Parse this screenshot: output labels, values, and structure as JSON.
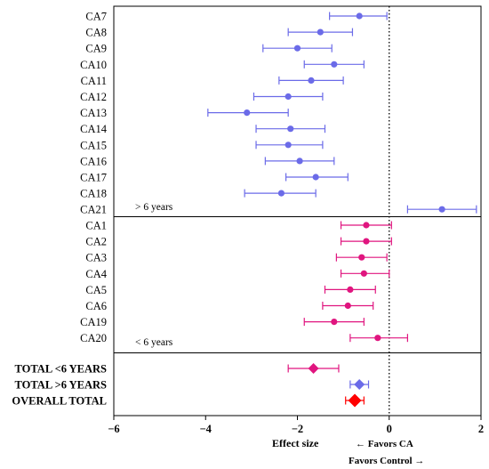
{
  "chart_data": {
    "type": "forest",
    "xlabel": "Effect size",
    "xlim": [
      -6,
      2
    ],
    "xticks": [
      "-6",
      "-4",
      "-2",
      "0",
      "2"
    ],
    "reference_line": 0,
    "favor_left": "← Favors CA",
    "favor_right": "Favors Control →",
    "colors": {
      "over6": "#6b6be8",
      "under6": "#e0157f",
      "overall": "#ff0000",
      "overall_edge": "#cc0000"
    },
    "groups": [
      {
        "label": "> 6 years",
        "color": "over6",
        "studies": [
          {
            "name": "CA7",
            "est": -0.65,
            "lo": -1.3,
            "hi": -0.05
          },
          {
            "name": "CA8",
            "est": -1.5,
            "lo": -2.2,
            "hi": -0.8
          },
          {
            "name": "CA9",
            "est": -2.0,
            "lo": -2.75,
            "hi": -1.25
          },
          {
            "name": "CA10",
            "est": -1.2,
            "lo": -1.85,
            "hi": -0.55
          },
          {
            "name": "CA11",
            "est": -1.7,
            "lo": -2.4,
            "hi": -1.0
          },
          {
            "name": "CA12",
            "est": -2.2,
            "lo": -2.95,
            "hi": -1.45
          },
          {
            "name": "CA13",
            "est": -3.1,
            "lo": -3.95,
            "hi": -2.2
          },
          {
            "name": "CA14",
            "est": -2.15,
            "lo": -2.9,
            "hi": -1.4
          },
          {
            "name": "CA15",
            "est": -2.2,
            "lo": -2.9,
            "hi": -1.45
          },
          {
            "name": "CA16",
            "est": -1.95,
            "lo": -2.7,
            "hi": -1.2
          },
          {
            "name": "CA17",
            "est": -1.6,
            "lo": -2.25,
            "hi": -0.9
          },
          {
            "name": "CA18",
            "est": -2.35,
            "lo": -3.15,
            "hi": -1.6
          },
          {
            "name": "CA21",
            "est": 1.15,
            "lo": 0.4,
            "hi": 1.9
          }
        ]
      },
      {
        "label": "< 6 years",
        "color": "under6",
        "studies": [
          {
            "name": "CA1",
            "est": -0.5,
            "lo": -1.05,
            "hi": 0.05
          },
          {
            "name": "CA2",
            "est": -0.5,
            "lo": -1.05,
            "hi": 0.05
          },
          {
            "name": "CA3",
            "est": -0.6,
            "lo": -1.15,
            "hi": -0.05
          },
          {
            "name": "CA4",
            "est": -0.55,
            "lo": -1.05,
            "hi": 0.0
          },
          {
            "name": "CA5",
            "est": -0.85,
            "lo": -1.4,
            "hi": -0.3
          },
          {
            "name": "CA6",
            "est": -0.9,
            "lo": -1.45,
            "hi": -0.35
          },
          {
            "name": "CA19",
            "est": -1.2,
            "lo": -1.85,
            "hi": -0.55
          },
          {
            "name": "CA20",
            "est": -0.25,
            "lo": -0.85,
            "hi": 0.4
          }
        ]
      }
    ],
    "totals": [
      {
        "name": "TOTAL <6 YEARS",
        "est": -1.65,
        "lo": -2.2,
        "hi": -1.1,
        "color": "under6"
      },
      {
        "name": "TOTAL >6 YEARS",
        "est": -0.65,
        "lo": -0.85,
        "hi": -0.45,
        "color": "over6"
      },
      {
        "name": "OVERALL TOTAL",
        "est": -0.75,
        "lo": -0.95,
        "hi": -0.55,
        "color": "overall"
      }
    ]
  }
}
